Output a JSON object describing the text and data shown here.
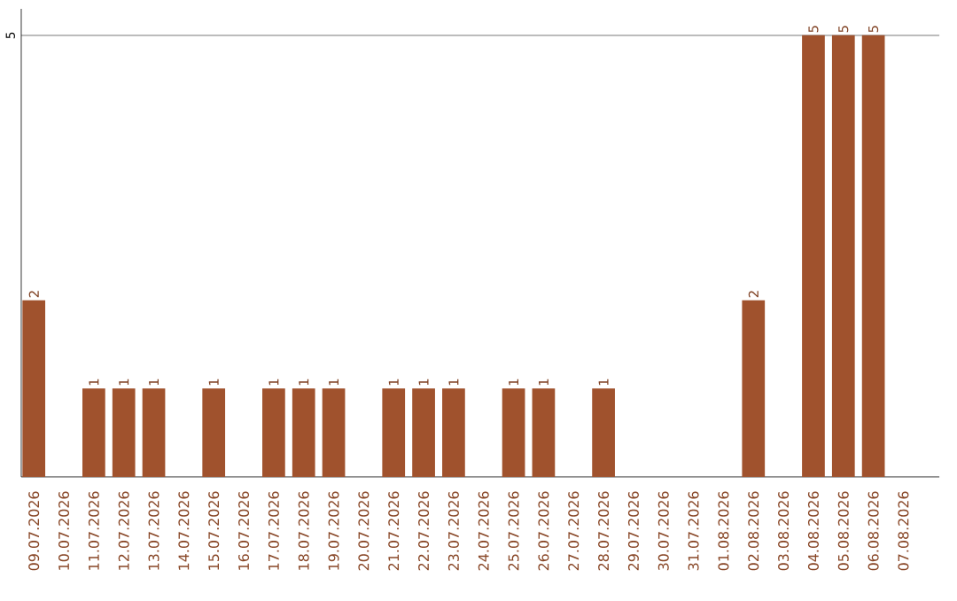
{
  "chart_data": {
    "type": "bar",
    "categories": [
      "09.07.2026",
      "10.07.2026",
      "11.07.2026",
      "12.07.2026",
      "13.07.2026",
      "14.07.2026",
      "15.07.2026",
      "16.07.2026",
      "17.07.2026",
      "18.07.2026",
      "19.07.2026",
      "20.07.2026",
      "21.07.2026",
      "22.07.2026",
      "23.07.2026",
      "24.07.2026",
      "25.07.2026",
      "26.07.2026",
      "27.07.2026",
      "28.07.2026",
      "29.07.2026",
      "30.07.2026",
      "31.07.2026",
      "01.08.2026",
      "02.08.2026",
      "03.08.2026",
      "04.08.2026",
      "05.08.2026",
      "06.08.2026",
      "07.08.2026"
    ],
    "values": [
      2,
      0,
      1,
      1,
      1,
      0,
      1,
      0,
      1,
      1,
      1,
      0,
      1,
      1,
      1,
      0,
      1,
      1,
      0,
      1,
      0,
      0,
      0,
      0,
      2,
      0,
      5,
      5,
      5,
      0
    ],
    "value_labels": [
      "2",
      null,
      "1",
      "1",
      "1",
      null,
      "1",
      null,
      "1",
      "1",
      "1",
      null,
      "1",
      "1",
      "1",
      null,
      "1",
      "1",
      null,
      "1",
      null,
      null,
      null,
      null,
      "2",
      null,
      "5",
      "5",
      "5",
      null
    ],
    "color": "#a0522d",
    "ylim": [
      0,
      5.3
    ],
    "yticks": [
      5
    ],
    "grid": "y"
  }
}
